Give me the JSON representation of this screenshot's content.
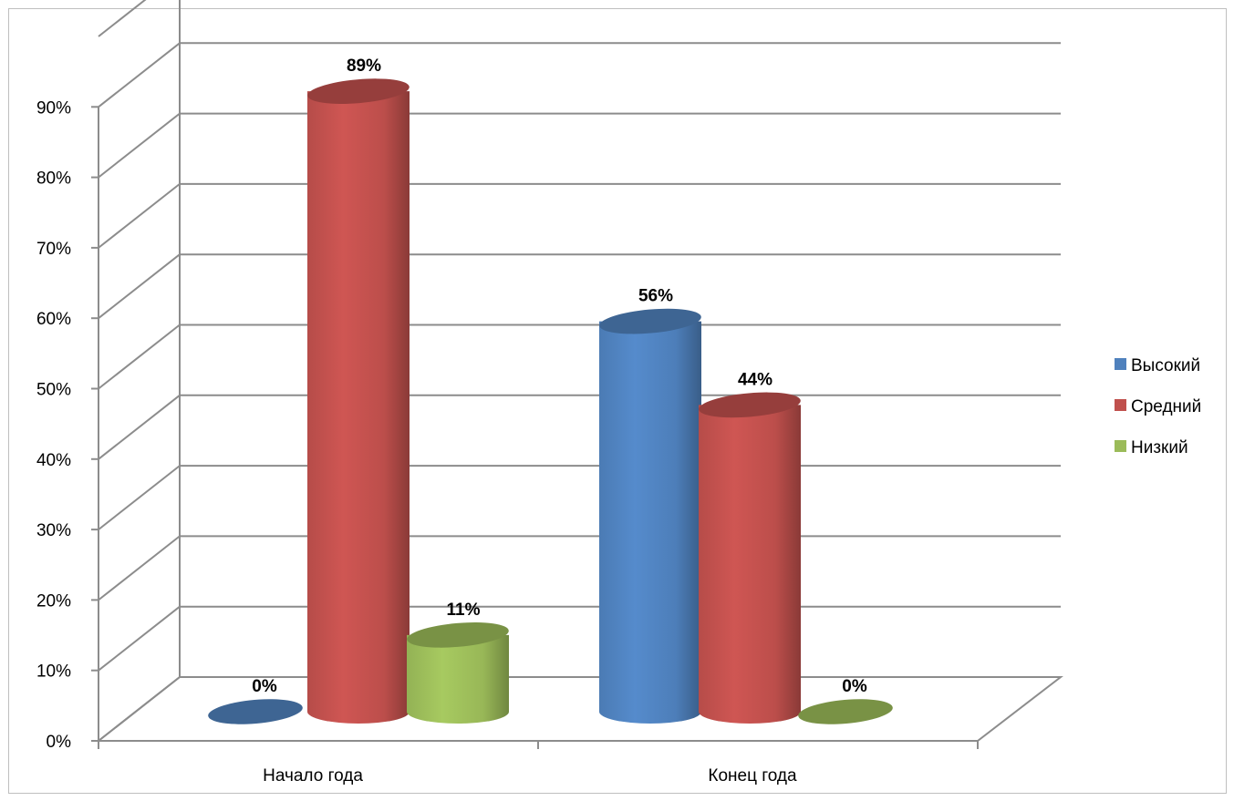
{
  "chart_data": {
    "type": "bar",
    "style": "3d-cylinder",
    "categories": [
      "Начало года",
      "Конец года"
    ],
    "series": [
      {
        "name": "Высокий",
        "values": [
          0,
          56
        ],
        "labels": [
          "0%",
          "56%"
        ],
        "color": "#4F81BD"
      },
      {
        "name": "Средний",
        "values": [
          89,
          44
        ],
        "labels": [
          "89%",
          "44%"
        ],
        "color": "#C0504D"
      },
      {
        "name": "Низкий",
        "values": [
          11,
          0
        ],
        "labels": [
          "11%",
          "0%"
        ],
        "color": "#9BBB59"
      }
    ],
    "ylim": [
      0,
      90
    ],
    "yticks": [
      "0%",
      "10%",
      "20%",
      "30%",
      "40%",
      "50%",
      "60%",
      "70%",
      "80%",
      "90%"
    ],
    "title": "",
    "xlabel": "",
    "ylabel": "",
    "grid": true,
    "legend": "right"
  }
}
